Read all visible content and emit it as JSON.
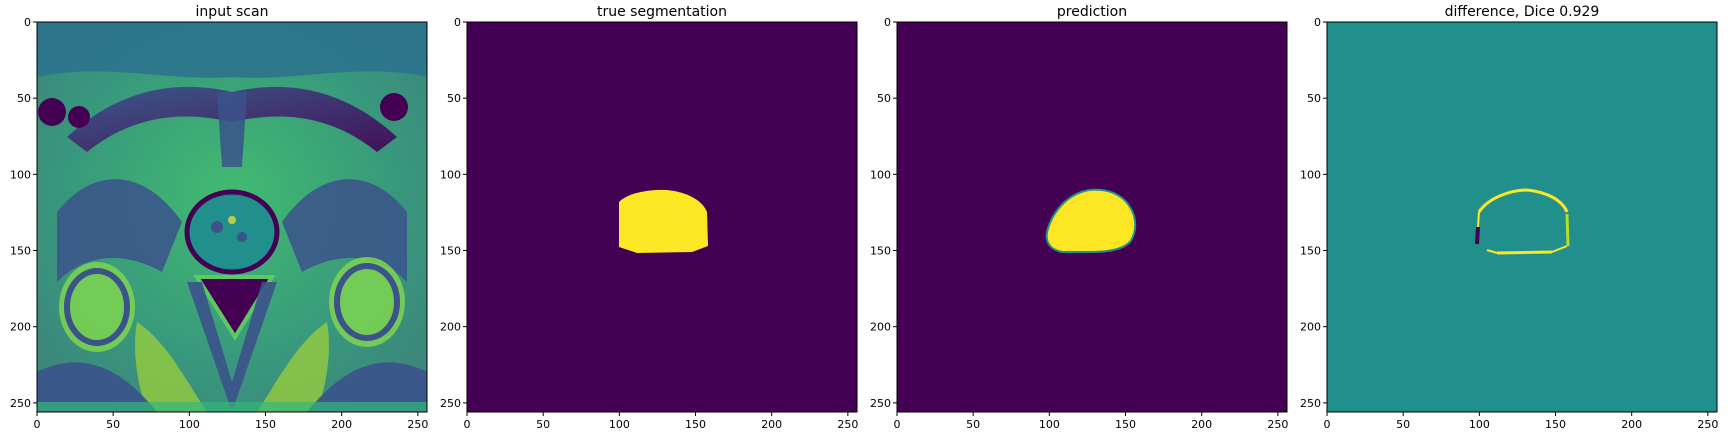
{
  "panels": [
    {
      "title": "input scan",
      "content": "grayscale MRI scan rendered with viridis colormap (pelvic region)"
    },
    {
      "title": "true segmentation",
      "content": "binary mask"
    },
    {
      "title": "prediction",
      "content": "predicted mask"
    },
    {
      "title": "difference, Dice 0.929",
      "content": "difference map between true segmentation and prediction"
    }
  ],
  "axes": {
    "x_ticks": [
      0,
      50,
      100,
      150,
      200,
      250
    ],
    "y_ticks": [
      0,
      50,
      100,
      150,
      200,
      250
    ],
    "range": [
      0,
      256
    ]
  },
  "colors": {
    "viridis_low": "#440154",
    "viridis_mid": "#21908d",
    "viridis_high": "#fde725",
    "viridis_dark_teal": "#2d5f8b",
    "viridis_green": "#5ec962"
  }
}
